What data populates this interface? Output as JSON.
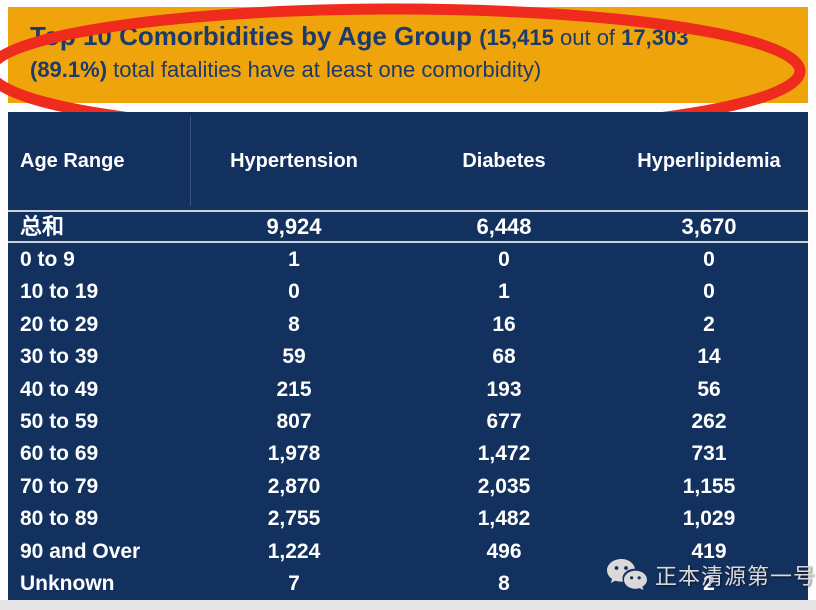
{
  "banner": {
    "title": "Top 10 Comorbidities by Age Group",
    "sub1_bold": "(15,415",
    "sub1_mid": " out of ",
    "sub1_bold2": "17,303",
    "sub2_bold": "(89.1%)",
    "sub2_rest": " total fatalities have at least one comorbidity)"
  },
  "table": {
    "columns": [
      "Age Range",
      "Hypertension",
      "Diabetes",
      "Hyperlipidemia"
    ],
    "total_row": [
      "总和",
      "9,924",
      "6,448",
      "3,670"
    ],
    "rows": [
      [
        "0 to 9",
        "1",
        "0",
        "0"
      ],
      [
        "10 to 19",
        "0",
        "1",
        "0"
      ],
      [
        "20 to 29",
        "8",
        "16",
        "2"
      ],
      [
        "30 to 39",
        "59",
        "68",
        "14"
      ],
      [
        "40 to 49",
        "215",
        "193",
        "56"
      ],
      [
        "50 to 59",
        "807",
        "677",
        "262"
      ],
      [
        "60 to 69",
        "1,978",
        "1,472",
        "731"
      ],
      [
        "70 to 79",
        "2,870",
        "2,035",
        "1,155"
      ],
      [
        "80 to 89",
        "2,755",
        "1,482",
        "1,029"
      ],
      [
        "90 and Over",
        "1,224",
        "496",
        "419"
      ],
      [
        "Unknown",
        "7",
        "8",
        "2"
      ]
    ]
  },
  "watermark": {
    "text": "正本清源第一号",
    "icon": "wechat-icon"
  },
  "colors": {
    "banner_bg": "#f0a40b",
    "title_text": "#1b3a6e",
    "table_bg": "#13315f",
    "table_text": "#ffffff",
    "annotation_red": "#ee2b1c",
    "separator_line": "#ccd2db",
    "watermark_text": "#d9d9d9",
    "bottom_strip": "#e7e5e5"
  },
  "chart_data": {
    "type": "table",
    "title": "Top 10 Comorbidities by Age Group (15,415 out of 17,303 (89.1%) total fatalities have at least one comorbidity)",
    "columns": [
      "Age Range",
      "Hypertension",
      "Diabetes",
      "Hyperlipidemia"
    ],
    "rows": [
      {
        "age_range": "总和",
        "hypertension": 9924,
        "diabetes": 6448,
        "hyperlipidemia": 3670
      },
      {
        "age_range": "0 to 9",
        "hypertension": 1,
        "diabetes": 0,
        "hyperlipidemia": 0
      },
      {
        "age_range": "10 to 19",
        "hypertension": 0,
        "diabetes": 1,
        "hyperlipidemia": 0
      },
      {
        "age_range": "20 to 29",
        "hypertension": 8,
        "diabetes": 16,
        "hyperlipidemia": 2
      },
      {
        "age_range": "30 to 39",
        "hypertension": 59,
        "diabetes": 68,
        "hyperlipidemia": 14
      },
      {
        "age_range": "40 to 49",
        "hypertension": 215,
        "diabetes": 193,
        "hyperlipidemia": 56
      },
      {
        "age_range": "50 to 59",
        "hypertension": 807,
        "diabetes": 677,
        "hyperlipidemia": 262
      },
      {
        "age_range": "60 to 69",
        "hypertension": 1978,
        "diabetes": 1472,
        "hyperlipidemia": 731
      },
      {
        "age_range": "70 to 79",
        "hypertension": 2870,
        "diabetes": 2035,
        "hyperlipidemia": 1155
      },
      {
        "age_range": "80 to 89",
        "hypertension": 2755,
        "diabetes": 1482,
        "hyperlipidemia": 1029
      },
      {
        "age_range": "90 and Over",
        "hypertension": 1224,
        "diabetes": 496,
        "hyperlipidemia": 419
      },
      {
        "age_range": "Unknown",
        "hypertension": 7,
        "diabetes": 8,
        "hyperlipidemia": 2
      }
    ],
    "annotations": [
      "red hand-drawn oval circling the title banner"
    ]
  }
}
